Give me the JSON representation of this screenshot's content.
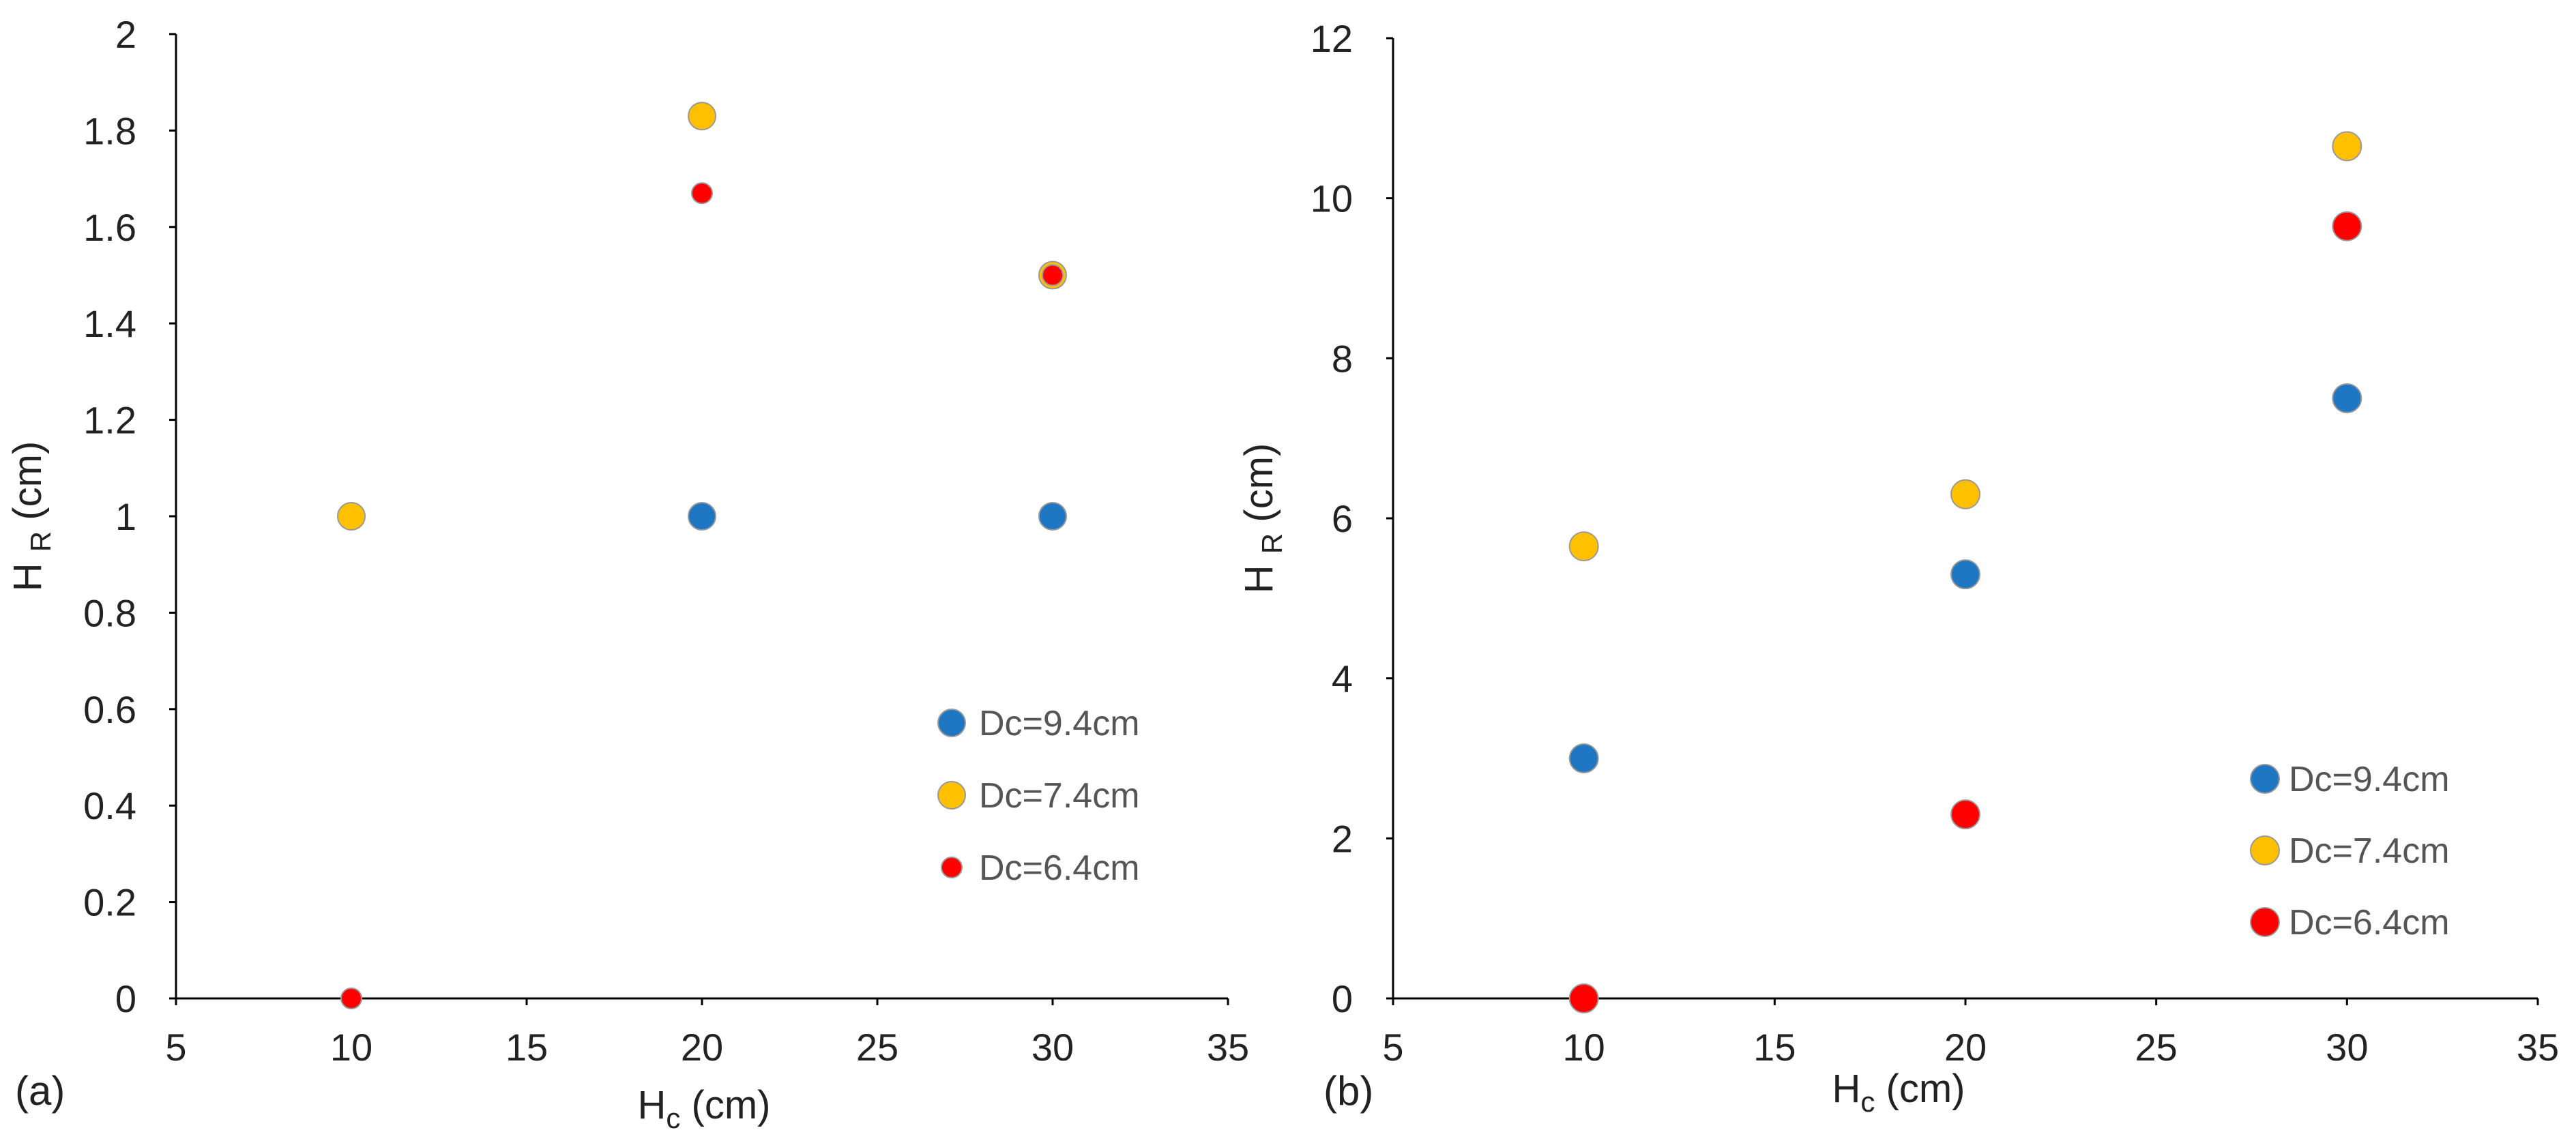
{
  "chart_data": [
    {
      "type": "scatter",
      "panel_label": "(a)",
      "xlabel": "H",
      "xlabel_sub": "c",
      "xlabel_unit": " (cm)",
      "ylabel": "H",
      "ylabel_sub": "R",
      "ylabel_unit": " (cm)",
      "xlim": [
        5,
        35
      ],
      "ylim": [
        0,
        2
      ],
      "xticks": [
        "5",
        "10",
        "15",
        "20",
        "25",
        "30",
        "35"
      ],
      "yticks": [
        "0",
        "0.2",
        "0.4",
        "0.6",
        "0.8",
        "1",
        "1.2",
        "1.4",
        "1.6",
        "1.8",
        "2"
      ],
      "legend_position": "lower-right",
      "series": [
        {
          "name": "Dc=9.4cm",
          "color": "#1f77c4",
          "marker": "large",
          "x": [
            20,
            30
          ],
          "y": [
            1,
            1
          ]
        },
        {
          "name": "Dc=7.4cm",
          "color": "#ffc000",
          "marker": "large",
          "x": [
            10,
            20,
            30
          ],
          "y": [
            1,
            1.83,
            1.5
          ]
        },
        {
          "name": "Dc=6.4cm",
          "color": "#ff0000",
          "marker": "small",
          "x": [
            10,
            20,
            30
          ],
          "y": [
            0,
            1.67,
            1.5
          ]
        }
      ]
    },
    {
      "type": "scatter",
      "panel_label": "(b)",
      "xlabel": "H",
      "xlabel_sub": "c",
      "xlabel_unit": " (cm)",
      "ylabel": "H",
      "ylabel_sub": "R",
      "ylabel_unit": " (cm)",
      "xlim": [
        5,
        35
      ],
      "ylim": [
        0,
        12
      ],
      "xticks": [
        "5",
        "10",
        "15",
        "20",
        "25",
        "30",
        "35"
      ],
      "yticks": [
        "0",
        "2",
        "4",
        "6",
        "8",
        "10",
        "12"
      ],
      "legend_position": "lower-right",
      "series": [
        {
          "name": "Dc=9.4cm",
          "color": "#1f77c4",
          "marker": "large",
          "x": [
            10,
            20,
            30
          ],
          "y": [
            3,
            5.3,
            7.5
          ]
        },
        {
          "name": "Dc=7.4cm",
          "color": "#ffc000",
          "marker": "large",
          "x": [
            10,
            20,
            30
          ],
          "y": [
            5.65,
            6.3,
            10.65
          ]
        },
        {
          "name": "Dc=6.4cm",
          "color": "#ff0000",
          "marker": "large",
          "x": [
            10,
            20,
            30
          ],
          "y": [
            0,
            2.3,
            9.65
          ]
        }
      ]
    }
  ]
}
